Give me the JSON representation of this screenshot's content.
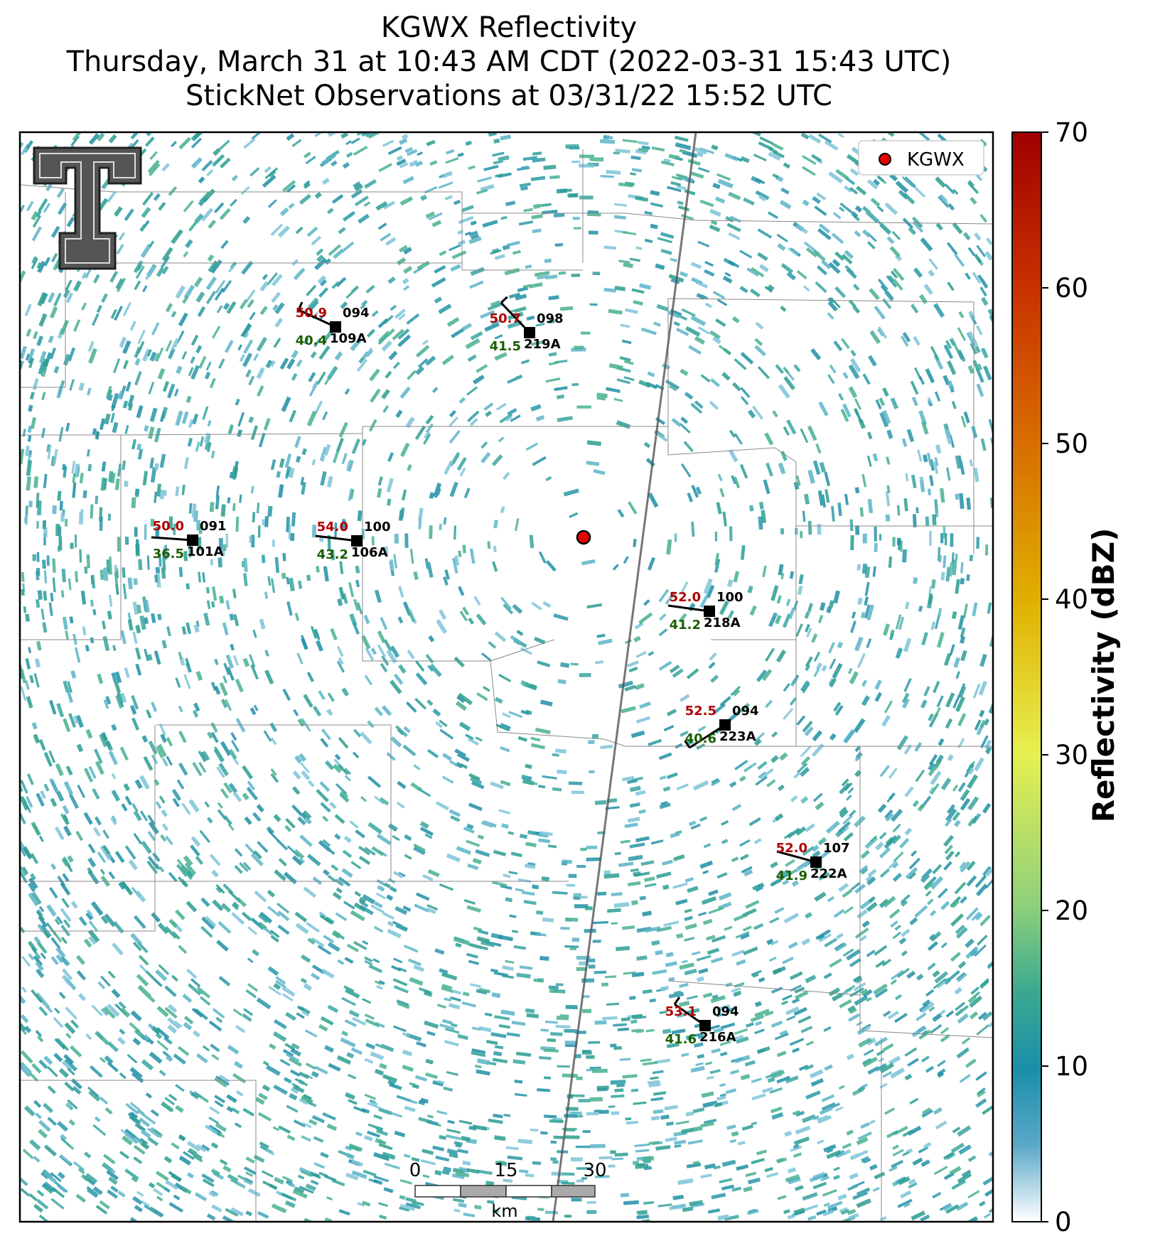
{
  "title": {
    "line1": "KGWX Reflectivity",
    "line2": "Thursday, March 31 at 10:43 AM CDT (2022-03-31 15:43 UTC)",
    "line3": "StickNet Observations at 03/31/22 15:52 UTC"
  },
  "legend": {
    "label": "KGWX",
    "marker_color": "#e50000"
  },
  "scale_bar": {
    "ticks": [
      "0",
      "15",
      "30"
    ],
    "unit": "km"
  },
  "colorbar": {
    "label": "Reflectivity (dBZ)",
    "ticks": [
      "0",
      "10",
      "20",
      "30",
      "40",
      "50",
      "60",
      "70"
    ],
    "colors": [
      "#ffffff",
      "#1a8faa",
      "#5bbf7a",
      "#e6f050",
      "#e0b000",
      "#d87000",
      "#c83000",
      "#a00000"
    ]
  },
  "stations": [
    {
      "id": "109A",
      "temp": "50.9",
      "dew": "40.4",
      "dir": "094"
    },
    {
      "id": "219A",
      "temp": "50.7",
      "dew": "41.5",
      "dir": "098"
    },
    {
      "id": "101A",
      "temp": "50.0",
      "dew": "36.5",
      "dir": "091"
    },
    {
      "id": "106A",
      "temp": "54.0",
      "dew": "43.2",
      "dir": "100"
    },
    {
      "id": "218A",
      "temp": "52.0",
      "dew": "41.2",
      "dir": "100"
    },
    {
      "id": "223A",
      "temp": "52.5",
      "dew": "40.6",
      "dir": "094"
    },
    {
      "id": "222A",
      "temp": "52.0",
      "dew": "41.9",
      "dir": "107"
    },
    {
      "id": "216A",
      "temp": "53.1",
      "dew": "41.6",
      "dir": "094"
    }
  ],
  "colors": {
    "temp": "#b00000",
    "dew": "#1a5e00",
    "radar_echo": "#2a98a8"
  }
}
